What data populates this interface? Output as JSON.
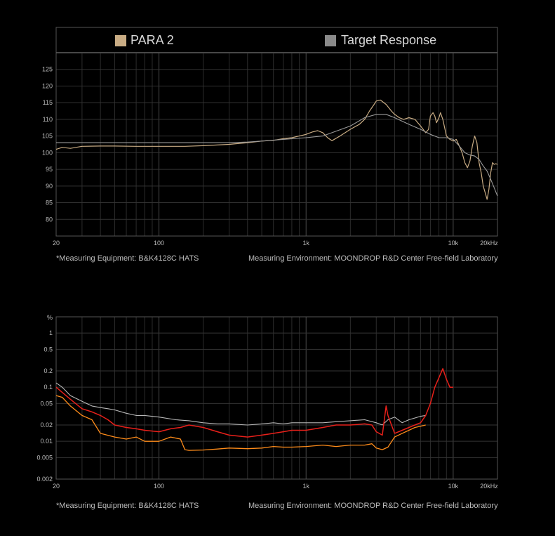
{
  "chart_data": [
    {
      "type": "line",
      "x_scale": "log",
      "xlim": [
        20,
        20000
      ],
      "ylim": [
        75,
        130
      ],
      "x_ticks": [
        20,
        100,
        1000,
        10000,
        20000
      ],
      "x_tick_labels": [
        "20",
        "100",
        "1k",
        "10k",
        "20kHz"
      ],
      "y_ticks": [
        80,
        85,
        90,
        95,
        100,
        105,
        110,
        115,
        120,
        125
      ],
      "grid": true,
      "legend_position": "top",
      "series": [
        {
          "name": "PARA 2",
          "color": "#c9ac84",
          "x": [
            20,
            22,
            25,
            30,
            40,
            50,
            70,
            100,
            150,
            200,
            300,
            400,
            500,
            600,
            700,
            800,
            900,
            1000,
            1100,
            1200,
            1300,
            1400,
            1500,
            1700,
            2000,
            2300,
            2500,
            2700,
            2900,
            3000,
            3200,
            3500,
            3800,
            4000,
            4300,
            4600,
            5000,
            5500,
            6000,
            6500,
            6800,
            7000,
            7300,
            7500,
            7700,
            8000,
            8200,
            8500,
            9000,
            9500,
            10000,
            10500,
            11000,
            11500,
            12000,
            12500,
            13000,
            13500,
            14000,
            14500,
            15000,
            15500,
            16000,
            16500,
            17000,
            17500,
            18000,
            18500,
            19000,
            19500,
            20000
          ],
          "y": [
            101,
            101.6,
            101.3,
            101.9,
            102,
            102,
            101.9,
            101.9,
            101.9,
            102.1,
            102.5,
            103,
            103.5,
            103.7,
            104.2,
            104.5,
            105,
            105.5,
            106.2,
            106.6,
            106,
            104.5,
            103.6,
            105,
            107,
            108.5,
            110,
            112.5,
            114.5,
            115.5,
            115.8,
            114.5,
            112.5,
            111.5,
            110.5,
            110,
            110.5,
            110,
            108,
            106,
            107,
            111,
            112,
            111,
            109,
            110.5,
            112,
            110,
            105,
            104,
            103.5,
            104,
            102,
            100,
            97,
            95.5,
            97.5,
            102,
            105,
            103,
            97,
            94,
            90,
            88,
            86,
            89,
            94,
            97,
            96.5,
            96.7,
            96.5
          ]
        },
        {
          "name": "Target Response",
          "color": "#9a9a9a",
          "x": [
            20,
            30,
            50,
            100,
            200,
            300,
            400,
            500,
            700,
            1000,
            1300,
            1500,
            2000,
            2500,
            3000,
            3500,
            4000,
            5000,
            6000,
            7000,
            8000,
            9000,
            10000,
            11000,
            12000,
            13000,
            14000,
            15000,
            16000,
            17000,
            18000,
            19000,
            20000
          ],
          "y": [
            103,
            103,
            103,
            103,
            103,
            103,
            103.2,
            103.5,
            104,
            104.5,
            105,
            106,
            108,
            110.5,
            111.5,
            111.5,
            110.5,
            108.5,
            107,
            105.5,
            104.5,
            104.5,
            104,
            102,
            100,
            99.3,
            99,
            98,
            96,
            94.5,
            92,
            89.5,
            87
          ]
        }
      ]
    },
    {
      "type": "line",
      "x_scale": "log",
      "y_scale": "log",
      "xlim": [
        20,
        20000
      ],
      "ylim": [
        0.002,
        2
      ],
      "ylabel": "%",
      "x_ticks": [
        20,
        100,
        1000,
        10000,
        20000
      ],
      "x_tick_labels": [
        "20",
        "100",
        "1k",
        "10k",
        "20kHz"
      ],
      "y_ticks": [
        1,
        0.5,
        0.2,
        0.1,
        0.05,
        0.02,
        0.01,
        0.005,
        0.002
      ],
      "y_tick_labels": [
        "1",
        "0.5",
        "0.2",
        "0.1",
        "0.05",
        "0.02",
        "0.01",
        "0.005",
        "0.002"
      ],
      "grid": true,
      "series": [
        {
          "color": "#b8b8b8",
          "x": [
            20,
            22,
            25,
            30,
            35,
            40,
            45,
            50,
            60,
            70,
            80,
            100,
            130,
            160,
            200,
            250,
            300,
            400,
            500,
            600,
            700,
            800,
            1000,
            1300,
            1600,
            2000,
            2500,
            3000,
            3300,
            3600,
            4000,
            4500,
            5000,
            5500,
            6000,
            6500
          ],
          "y": [
            0.12,
            0.1,
            0.07,
            0.055,
            0.045,
            0.042,
            0.04,
            0.038,
            0.033,
            0.03,
            0.03,
            0.028,
            0.025,
            0.024,
            0.022,
            0.021,
            0.021,
            0.02,
            0.021,
            0.022,
            0.021,
            0.022,
            0.022,
            0.022,
            0.023,
            0.024,
            0.025,
            0.022,
            0.02,
            0.025,
            0.028,
            0.022,
            0.025,
            0.027,
            0.029,
            0.03
          ]
        },
        {
          "color": "#ff8c1a",
          "x": [
            20,
            22,
            25,
            30,
            35,
            40,
            50,
            60,
            70,
            80,
            100,
            120,
            140,
            150,
            160,
            200,
            250,
            300,
            400,
            500,
            600,
            700,
            800,
            1000,
            1300,
            1600,
            2000,
            2500,
            2800,
            3000,
            3300,
            3600,
            4000,
            4500,
            5000,
            5500,
            6000,
            6500
          ],
          "y": [
            0.07,
            0.065,
            0.045,
            0.03,
            0.025,
            0.014,
            0.012,
            0.011,
            0.012,
            0.01,
            0.01,
            0.012,
            0.011,
            0.007,
            0.0068,
            0.0069,
            0.0072,
            0.0075,
            0.0073,
            0.0075,
            0.008,
            0.0078,
            0.0078,
            0.008,
            0.0085,
            0.008,
            0.0085,
            0.0085,
            0.009,
            0.0075,
            0.007,
            0.0078,
            0.012,
            0.014,
            0.016,
            0.018,
            0.019,
            0.02
          ]
        },
        {
          "color": "#e8201a",
          "x": [
            20,
            22,
            25,
            30,
            35,
            40,
            45,
            50,
            60,
            70,
            80,
            100,
            120,
            140,
            160,
            200,
            250,
            300,
            400,
            500,
            600,
            700,
            800,
            1000,
            1300,
            1600,
            2000,
            2500,
            2800,
            3000,
            3300,
            3500,
            3600,
            4000,
            4500,
            5000,
            5500,
            6000,
            6500,
            7000,
            7500,
            8000,
            8500,
            9000,
            9500,
            10000
          ],
          "y": [
            0.1,
            0.08,
            0.06,
            0.04,
            0.035,
            0.03,
            0.025,
            0.02,
            0.018,
            0.017,
            0.016,
            0.015,
            0.017,
            0.018,
            0.02,
            0.018,
            0.015,
            0.013,
            0.012,
            0.013,
            0.014,
            0.015,
            0.016,
            0.016,
            0.018,
            0.02,
            0.02,
            0.021,
            0.02,
            0.015,
            0.013,
            0.045,
            0.03,
            0.014,
            0.016,
            0.018,
            0.02,
            0.022,
            0.03,
            0.05,
            0.1,
            0.15,
            0.22,
            0.14,
            0.1,
            0.1
          ]
        }
      ]
    }
  ],
  "chart1": {
    "legend": [
      {
        "label": "PARA 2",
        "color": "#c9ac84"
      },
      {
        "label": "Target Response",
        "color": "#8a8a8a"
      }
    ],
    "note_left": "*Measuring Equipment: B&K4128C HATS",
    "note_right": "Measuring Environment: MOONDROP R&D Center Free-field Laboratory"
  },
  "chart2": {
    "note_left": "*Measuring Equipment: B&K4128C HATS",
    "note_right": "Measuring Environment: MOONDROP R&D Center Free-field Laboratory"
  }
}
